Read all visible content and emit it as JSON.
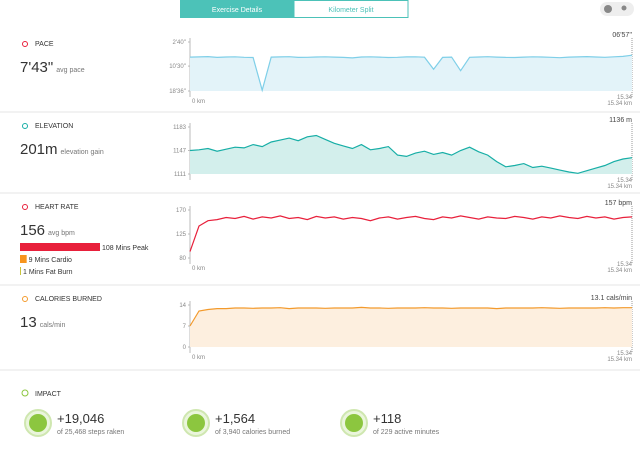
{
  "tabs": [
    "Exercise Details",
    "Kilometer Split"
  ],
  "sections": [
    {
      "title": "PACE",
      "value": "7'43\"",
      "unit": "avg pace",
      "chart": {
        "type": "line",
        "color": "#7fcfe8",
        "fill": "#e3f3f9",
        "ylim": [
          1116,
          160
        ],
        "yticks": [
          {
            "value": 160,
            "label": "2'40''"
          },
          {
            "value": 630,
            "label": "10'30''"
          },
          {
            "value": 1116,
            "label": "18'36''"
          }
        ],
        "top_label": "06'57''",
        "x_start": "0 km",
        "x_end": "15.34",
        "x_end_label": "15.34 km",
        "values": [
          455,
          450,
          445,
          460,
          452,
          448,
          458,
          462,
          1100,
          455,
          450,
          447,
          460,
          458,
          452,
          449,
          455,
          460,
          470,
          453,
          448,
          455,
          462,
          458,
          451,
          449,
          456,
          690,
          460,
          455,
          720,
          458,
          452,
          447,
          455,
          460,
          462,
          454,
          449,
          453,
          458,
          466,
          455,
          450,
          445,
          452,
          458,
          448,
          441,
          417
        ]
      }
    },
    {
      "title": "ELEVATION",
      "value": "201m",
      "unit": "elevation gain",
      "chart": {
        "type": "line",
        "color": "#17aea6",
        "fill": "#d3efec",
        "ylim": [
          1111,
          1183
        ],
        "yticks": [
          1183,
          1147,
          1111
        ],
        "top_label": "1136 m",
        "x_end": "15.34",
        "x_end_label": "15.34 km",
        "values": [
          1147,
          1148,
          1150,
          1146,
          1149,
          1152,
          1151,
          1156,
          1153,
          1160,
          1163,
          1166,
          1162,
          1168,
          1170,
          1164,
          1158,
          1154,
          1150,
          1156,
          1148,
          1150,
          1153,
          1140,
          1138,
          1143,
          1146,
          1141,
          1144,
          1140,
          1147,
          1152,
          1145,
          1140,
          1130,
          1122,
          1124,
          1127,
          1121,
          1123,
          1120,
          1117,
          1114,
          1112,
          1116,
          1120,
          1124,
          1130,
          1134,
          1136
        ]
      }
    },
    {
      "title": "HEART RATE",
      "value": "156",
      "unit": "avg bpm",
      "zones": [
        {
          "minutes": 108,
          "label": "Mins Peak",
          "color": "#e8203b"
        },
        {
          "minutes": 9,
          "label": "Mins Cardio",
          "color": "#f7941d"
        },
        {
          "minutes": 1,
          "label": "Mins Fat Burn",
          "color": "#c8c43a"
        }
      ],
      "chart": {
        "type": "line",
        "color": "#e8203b",
        "ylim": [
          80,
          170
        ],
        "yticks": [
          170,
          125,
          80
        ],
        "top_label": "157 bpm",
        "x_start": "0 km",
        "x_end": "15.34",
        "x_end_label": "15.34 km",
        "values": [
          92,
          140,
          150,
          152,
          156,
          154,
          158,
          153,
          157,
          155,
          159,
          154,
          156,
          152,
          158,
          155,
          157,
          153,
          156,
          154,
          150,
          155,
          157,
          153,
          156,
          158,
          154,
          152,
          157,
          155,
          159,
          156,
          153,
          157,
          155,
          154,
          158,
          156,
          153,
          157,
          155,
          159,
          156,
          154,
          158,
          155,
          157,
          153,
          156,
          157
        ]
      }
    },
    {
      "title": "CALORIES BURNED",
      "value": "13",
      "unit": "cals/min",
      "chart": {
        "type": "line",
        "color": "#f39a2c",
        "fill": "#fdefdf",
        "ylim": [
          0,
          14
        ],
        "yticks": [
          14,
          7,
          0
        ],
        "top_label": "13.1 cals/min",
        "x_start": "0 km",
        "x_end": "15.34",
        "x_end_label": "15.34 km",
        "values": [
          7,
          12,
          12.5,
          12.8,
          12.8,
          13,
          13,
          12.9,
          13,
          13,
          13.1,
          12.8,
          13,
          13,
          13,
          12.9,
          13,
          13,
          13,
          13.2,
          13,
          13,
          12.9,
          13,
          13,
          13,
          13.1,
          13,
          13,
          12.9,
          13,
          13,
          13,
          13,
          12.8,
          13,
          13,
          13,
          13,
          13.1,
          13,
          12.9,
          13,
          13,
          13,
          13,
          13.1,
          13,
          13.1,
          13.1
        ]
      }
    }
  ],
  "impact": {
    "title": "IMPACT",
    "items": [
      {
        "value": "+19,046",
        "detail": "of 25,468 steps raken"
      },
      {
        "value": "+1,564",
        "detail": "of 3,940 calories burned"
      },
      {
        "value": "+118",
        "detail": "of 229 active minutes"
      }
    ]
  }
}
